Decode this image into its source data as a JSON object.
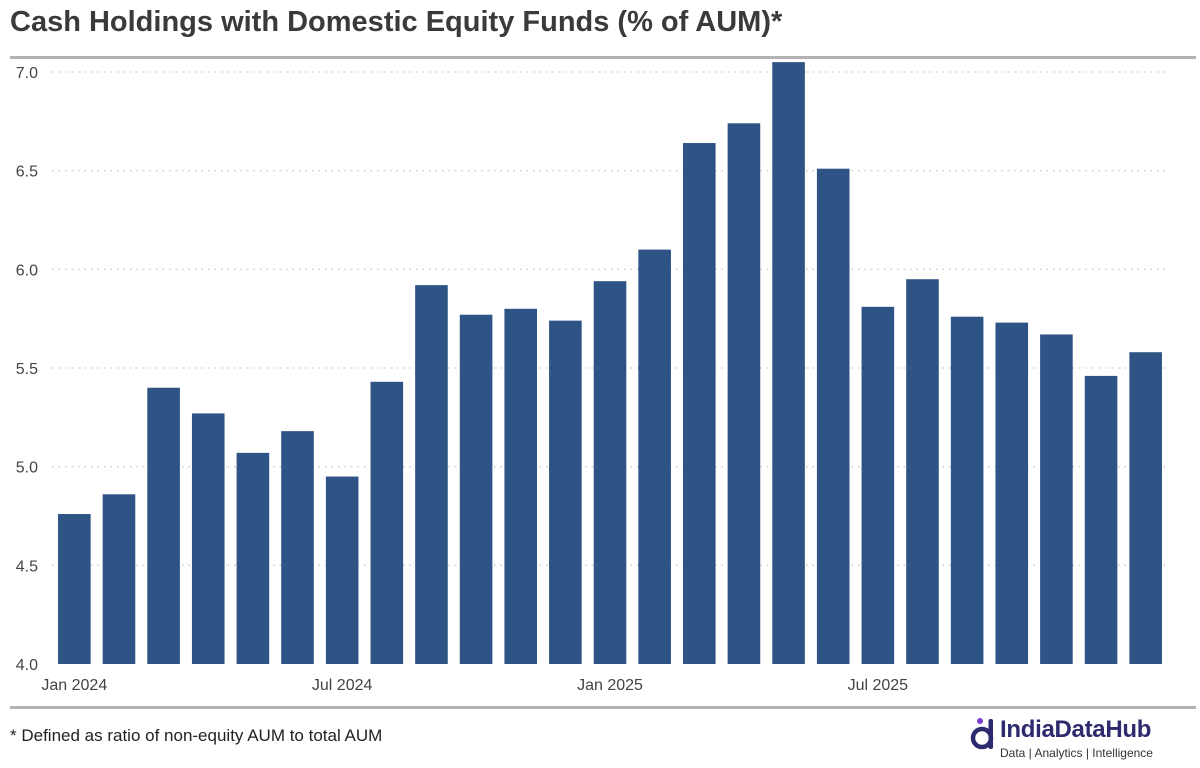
{
  "title": "Cash Holdings with Domestic Equity Funds (% of AUM)*",
  "footnote": "* Defined as ratio of non-equity AUM to total AUM",
  "brand": {
    "name": "IndiaDataHub",
    "tagline": "Data | Analytics | Intelligence"
  },
  "colors": {
    "bar": "#2e5385",
    "grid": "#c8c8c8",
    "axis_text": "#444444",
    "rule": "#b3b3b3",
    "brand_primary": "#2e2a6e",
    "brand_accent": "#7a3fd1"
  },
  "chart_data": {
    "type": "bar",
    "title": "Cash Holdings with Domestic Equity Funds (% of AUM)*",
    "xlabel": "",
    "ylabel": "",
    "ylim": [
      4.0,
      7.0
    ],
    "yticks": [
      4.0,
      4.5,
      5.0,
      5.5,
      6.0,
      6.5,
      7.0
    ],
    "grid": "horizontal-dotted",
    "legend": "none",
    "categories": [
      "Jan 2024",
      "Feb 2024",
      "Mar 2024",
      "Apr 2024",
      "May 2024",
      "Jun 2024",
      "Jul 2024",
      "Aug 2024",
      "Sep 2024",
      "Oct 2024",
      "Nov 2024",
      "Dec 2024",
      "Jan 2025",
      "Feb 2025",
      "Mar 2025",
      "Apr 2025",
      "May 2025",
      "Jun 2025",
      "Jul 2025",
      "Aug 2025",
      "Sep 2025",
      "Oct 2025",
      "Nov 2025",
      "Dec 2025",
      "Jan 2026"
    ],
    "x_tick_labels": [
      "Jan 2024",
      "",
      "",
      "",
      "",
      "",
      "Jul 2024",
      "",
      "",
      "",
      "",
      "",
      "Jan 2025",
      "",
      "",
      "",
      "",
      "",
      "Jul 2025",
      "",
      "",
      "",
      "",
      "",
      ""
    ],
    "values": [
      4.76,
      4.86,
      5.4,
      5.27,
      5.07,
      5.18,
      4.95,
      5.43,
      5.92,
      5.77,
      5.8,
      5.74,
      5.94,
      6.1,
      6.64,
      6.74,
      7.05,
      6.51,
      5.81,
      5.95,
      5.76,
      5.73,
      5.67,
      5.46,
      5.58
    ]
  }
}
